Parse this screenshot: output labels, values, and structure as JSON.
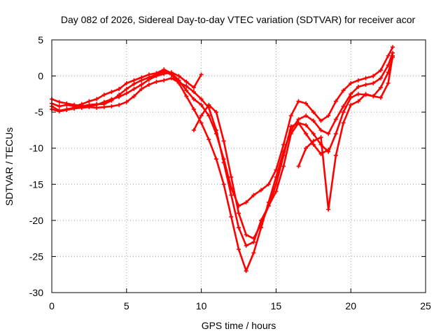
{
  "chart_data": {
    "type": "scatter",
    "title": "Day 082 of 2026, Sidereal Day-to-day VTEC variation (SDTVAR) for receiver acor",
    "xlabel": "GPS time / hours",
    "ylabel": "SDTVAR / TECUs",
    "xlim": [
      0,
      25
    ],
    "ylim": [
      -30,
      5
    ],
    "x_ticks": [
      0,
      5,
      10,
      15,
      20,
      25
    ],
    "y_ticks": [
      5,
      0,
      -5,
      -10,
      -15,
      -20,
      -25,
      -30
    ],
    "grid": true,
    "marker": "+",
    "series_color": "#ff0000",
    "series": [
      {
        "x": [
          0.0,
          0.5,
          1.0,
          1.5,
          2.0,
          2.5,
          3.0,
          3.5,
          4.0,
          4.5,
          5.0,
          5.5,
          6.0,
          6.5,
          7.0,
          7.5,
          8.0,
          8.5,
          9.0,
          9.5,
          10.0,
          10.5,
          11.0,
          11.5,
          12.0,
          12.5,
          13.0,
          13.5,
          14.0,
          14.5,
          15.0,
          15.5,
          16.0,
          16.5,
          17.0,
          17.5,
          18.0,
          18.5,
          19.0,
          19.5,
          20.0,
          20.5,
          21.0,
          21.5,
          22.0,
          22.5,
          22.8
        ],
        "y": [
          -4.2,
          -4.8,
          -4.6,
          -4.4,
          -4.2,
          -4.0,
          -3.9,
          -3.9,
          -3.4,
          -2.6,
          -1.8,
          -1.1,
          -0.6,
          -0.2,
          0.2,
          0.6,
          0.2,
          -1.0,
          -2.8,
          -4.6,
          -6.5,
          -8.8,
          -11.5,
          -15.0,
          -19.5,
          -24.0,
          -27.0,
          -24.5,
          -21.0,
          -17.5,
          -14.0,
          -10.5,
          -7.5,
          -6.0,
          -5.5,
          -6.2,
          -7.5,
          -8.0,
          -6.0,
          -4.2,
          -2.5,
          -1.5,
          -1.2,
          -1.0,
          -0.3,
          1.5,
          3.2
        ]
      },
      {
        "x": [
          0.0,
          0.5,
          1.0,
          1.5,
          2.0,
          2.5,
          3.0,
          3.5,
          4.0,
          4.5,
          5.0,
          5.5,
          6.0,
          6.5,
          7.0,
          7.5,
          8.0,
          8.5,
          9.0,
          9.5,
          10.0,
          10.5,
          11.0,
          11.5,
          12.0,
          12.5,
          13.0,
          13.5,
          14.0,
          14.5,
          15.0,
          15.5,
          16.0,
          16.5,
          17.0,
          17.5,
          18.0,
          18.5,
          19.0,
          19.5,
          20.0,
          20.5,
          21.0,
          21.5,
          22.0,
          22.5,
          22.8
        ],
        "y": [
          -3.8,
          -4.2,
          -4.0,
          -4.2,
          -3.9,
          -3.5,
          -3.2,
          -2.6,
          -2.2,
          -1.8,
          -1.0,
          -0.6,
          -0.2,
          0.2,
          0.4,
          0.9,
          0.4,
          -0.6,
          -2.0,
          -3.2,
          -4.0,
          -5.5,
          -8.0,
          -11.5,
          -15.5,
          -18.0,
          -17.5,
          -16.5,
          -15.8,
          -15.0,
          -13.0,
          -9.5,
          -5.5,
          -3.5,
          -3.8,
          -5.0,
          -6.2,
          -5.5,
          -3.5,
          -2.0,
          -1.0,
          -0.6,
          -0.3,
          0.0,
          0.8,
          2.8,
          4.0
        ]
      },
      {
        "x": [
          0.0,
          0.5,
          1.0,
          1.5,
          2.0,
          2.5,
          3.0,
          3.5,
          4.0,
          4.5,
          5.0,
          5.5,
          6.0,
          6.5,
          7.0,
          7.5,
          8.0,
          8.5,
          9.0,
          9.5,
          10.0,
          10.5,
          11.0,
          11.5,
          12.0,
          12.5,
          13.0,
          13.5,
          14.0,
          14.5,
          15.0,
          15.5,
          16.0,
          16.5,
          17.0,
          17.5,
          18.0,
          18.5,
          19.0,
          19.5,
          20.0,
          20.5,
          21.0,
          21.5,
          22.0,
          22.5,
          22.8
        ],
        "y": [
          -4.6,
          -4.9,
          -4.7,
          -4.5,
          -4.4,
          -4.3,
          -4.4,
          -4.3,
          -4.2,
          -4.0,
          -3.6,
          -2.8,
          -1.8,
          -1.2,
          -0.8,
          -0.6,
          -0.3,
          -0.9,
          -1.4,
          -2.2,
          -3.2,
          -4.4,
          -7.5,
          -12.0,
          -16.5,
          -21.0,
          -23.5,
          -23.0,
          -20.0,
          -18.0,
          -16.0,
          -12.5,
          -8.0,
          -6.5,
          -6.8,
          -8.0,
          -9.5,
          -10.5,
          -8.0,
          -5.0,
          -3.0,
          -2.5,
          -2.6,
          -2.8,
          -1.6,
          0.5,
          2.6
        ]
      },
      {
        "x": [
          0.0,
          0.5,
          1.0,
          1.5,
          2.0,
          2.5,
          3.0,
          3.5,
          4.0,
          4.5,
          5.0,
          5.5,
          6.0,
          6.5,
          7.0,
          7.5,
          8.0,
          8.5,
          9.0,
          9.5,
          10.0
        ],
        "y": [
          -3.2,
          -3.6,
          -3.8,
          -4.0,
          -4.1,
          -4.2,
          -4.0,
          -3.6,
          -3.2,
          -2.9,
          -2.4,
          -1.8,
          -1.2,
          -0.5,
          0.0,
          0.3,
          0.5,
          0.0,
          -0.8,
          -1.6,
          0.2
        ]
      },
      {
        "x": [
          9.5,
          10.0,
          10.5,
          11.0,
          11.5,
          12.0,
          12.5,
          13.0,
          13.5,
          14.0,
          14.5,
          15.0,
          15.5,
          16.0,
          16.5,
          17.0,
          17.5,
          18.0,
          18.5
        ],
        "y": [
          -7.5,
          -5.5,
          -4.0,
          -5.0,
          -9.0,
          -14.0,
          -19.0,
          -22.0,
          -22.5,
          -20.5,
          -18.0,
          -15.0,
          -11.0,
          -7.0,
          -6.5,
          -8.0,
          -9.5,
          -10.8,
          -10.2
        ]
      },
      {
        "x": [
          16.5,
          17.0,
          17.5,
          18.0,
          18.5,
          19.0,
          19.5,
          20.0,
          20.5,
          21.0,
          21.5,
          22.0,
          22.5,
          22.8
        ],
        "y": [
          -12.5,
          -10.0,
          -9.0,
          -8.5,
          -18.5,
          -11.0,
          -6.5,
          -4.0,
          -3.5,
          -2.5,
          -2.8,
          -3.0,
          -1.0,
          2.8
        ]
      }
    ]
  }
}
